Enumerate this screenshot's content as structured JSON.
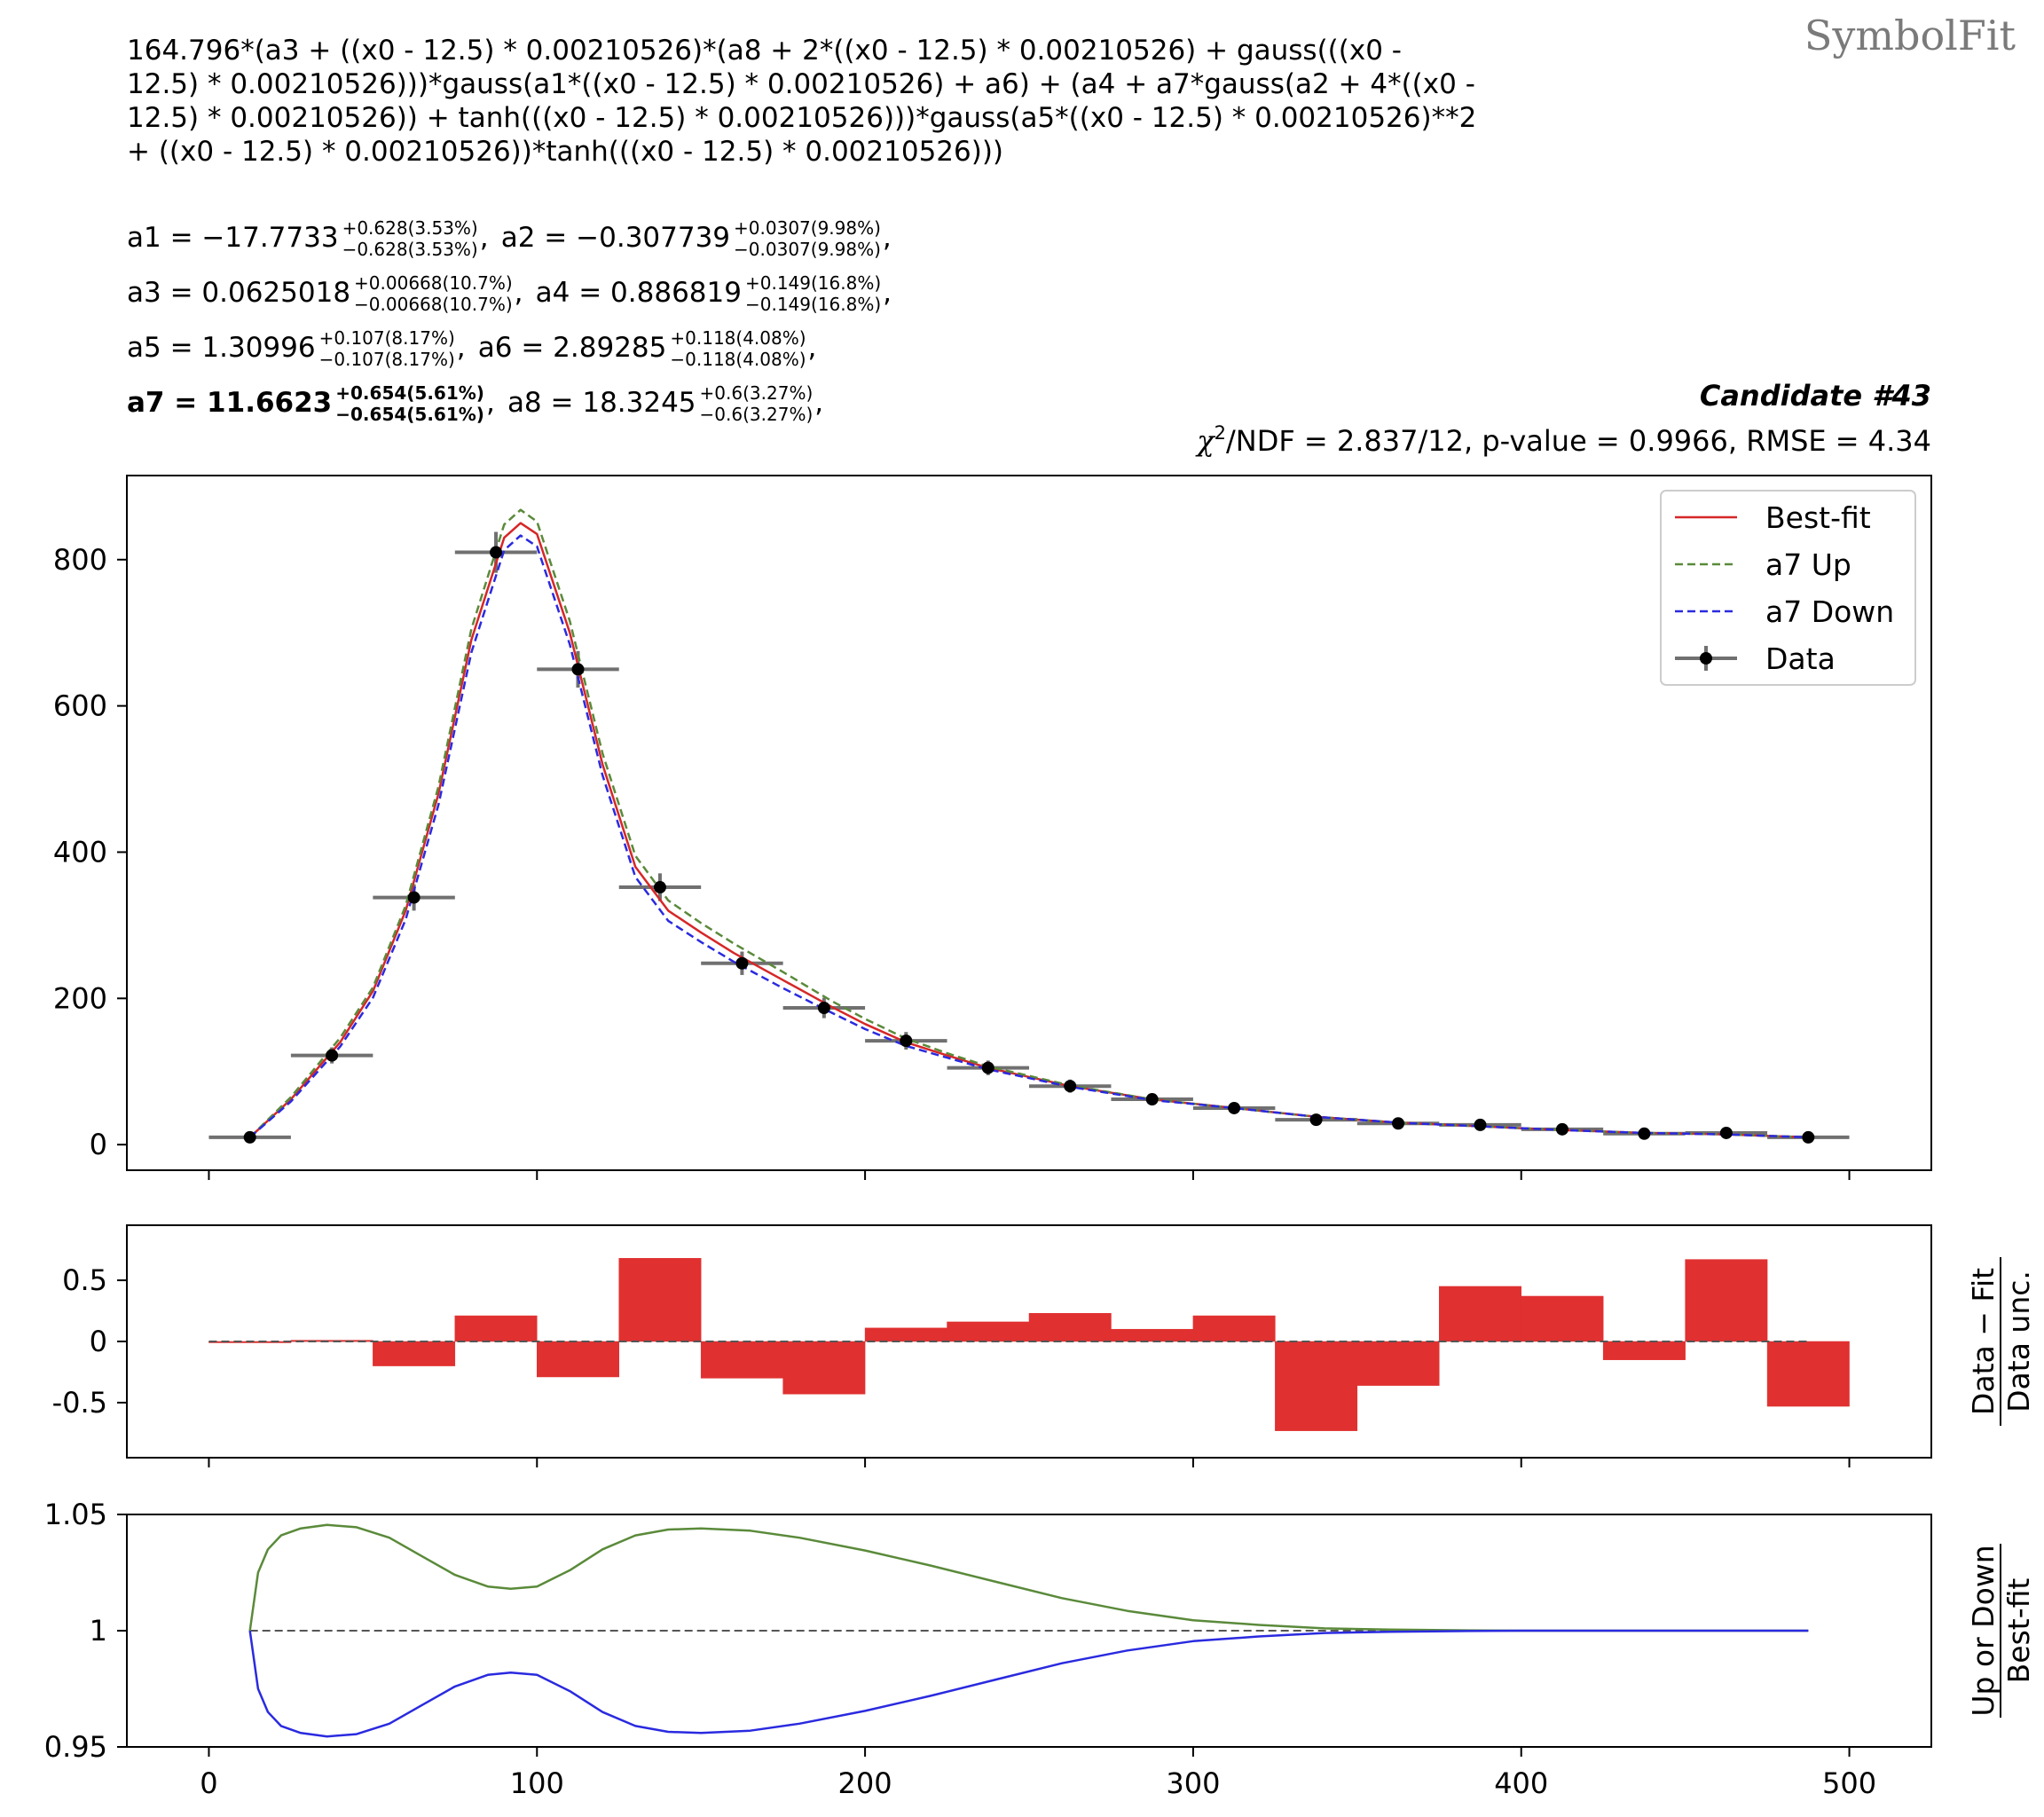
{
  "watermark": "SymbolFit",
  "formula_lines": [
    "164.796*(a3 + ((x0 - 12.5) * 0.00210526)*(a8 + 2*((x0 - 12.5) * 0.00210526) + gauss(((x0 -",
    "12.5) * 0.00210526)))*gauss(a1*((x0 - 12.5) * 0.00210526) + a6) + (a4 + a7*gauss(a2 + 4*((x0 -",
    "12.5) * 0.00210526)) + tanh(((x0 - 12.5) * 0.00210526)))*gauss(a5*((x0 - 12.5) * 0.00210526)**2",
    "+ ((x0 - 12.5) * 0.00210526))*tanh(((x0 - 12.5) * 0.00210526)))"
  ],
  "params": [
    {
      "name": "a1",
      "value": "−17.7733",
      "up": "+0.628(3.53%)",
      "down": "−0.628(3.53%)",
      "bold": false
    },
    {
      "name": "a2",
      "value": "−0.307739",
      "up": "+0.0307(9.98%)",
      "down": "−0.0307(9.98%)",
      "bold": false
    },
    {
      "name": "a3",
      "value": "0.0625018",
      "up": "+0.00668(10.7%)",
      "down": "−0.00668(10.7%)",
      "bold": false
    },
    {
      "name": "a4",
      "value": "0.886819",
      "up": "+0.149(16.8%)",
      "down": "−0.149(16.8%)",
      "bold": false
    },
    {
      "name": "a5",
      "value": "1.30996",
      "up": "+0.107(8.17%)",
      "down": "−0.107(8.17%)",
      "bold": false
    },
    {
      "name": "a6",
      "value": "2.89285",
      "up": "+0.118(4.08%)",
      "down": "−0.118(4.08%)",
      "bold": false
    },
    {
      "name": "a7",
      "value": "11.6623",
      "up": "+0.654(5.61%)",
      "down": "−0.654(5.61%)",
      "bold": true
    },
    {
      "name": "a8",
      "value": "18.3245",
      "up": "+0.6(3.27%)",
      "down": "−0.6(3.27%)",
      "bold": false
    }
  ],
  "candidate_label": "Candidate #43",
  "stats_chi": "χ",
  "stats_sup": "2",
  "stats_label": "/NDF = 2.837/12, p-value = 0.9966, RMSE = 4.34",
  "colors": {
    "best_fit": "#d62728",
    "up": "#5a8a3a",
    "down": "#2a2ae0",
    "data": "#000000",
    "bar": "#e03030",
    "errbar": "#707070"
  },
  "chart_data": [
    {
      "type": "line",
      "panel": "main",
      "xlim": [
        -25,
        525
      ],
      "ylim": [
        -35,
        915
      ],
      "yticks": [
        0,
        200,
        400,
        600,
        800
      ],
      "ytick_labels": [
        "0",
        "200",
        "400",
        "600",
        "800"
      ],
      "xticks": [
        0,
        100,
        200,
        300,
        400,
        500
      ],
      "legend_position": "top-right",
      "legend": [
        "Best-fit",
        "a7 Up",
        "a7 Down",
        "Data"
      ],
      "data": {
        "name": "Data",
        "x": [
          12.5,
          37.5,
          62.5,
          87.5,
          112.5,
          137.5,
          162.5,
          187.5,
          212.5,
          237.5,
          262.5,
          287.5,
          312.5,
          337.5,
          362.5,
          387.5,
          412.5,
          437.5,
          462.5,
          487.5
        ],
        "xerr": 12.5,
        "y": [
          10,
          122,
          338,
          810,
          650,
          352,
          248,
          187,
          142,
          105,
          80,
          62,
          50,
          34,
          29,
          27,
          21,
          15,
          16,
          10
        ],
        "yerr": [
          3,
          11,
          18,
          28,
          25,
          19,
          16,
          14,
          12,
          10,
          9,
          8,
          7,
          6,
          5,
          5,
          5,
          4,
          4,
          3
        ]
      },
      "series": [
        {
          "name": "Best-fit",
          "x": [
            12.5,
            25,
            40,
            50,
            60,
            70,
            80,
            90,
            95,
            100,
            110,
            120,
            130,
            140,
            150,
            160,
            175,
            190,
            200,
            212.5,
            225,
            237.5,
            262.5,
            287.5,
            312.5,
            337.5,
            362.5,
            387.5,
            412.5,
            437.5,
            462.5,
            487.5
          ],
          "y": [
            10,
            62,
            140,
            210,
            320,
            480,
            690,
            830,
            850,
            835,
            700,
            520,
            380,
            320,
            290,
            262,
            225,
            188,
            165,
            140,
            122,
            105,
            80,
            62,
            50,
            38,
            30,
            25,
            20,
            16,
            14,
            10
          ]
        },
        {
          "name": "a7 Up",
          "x": [
            12.5,
            25,
            40,
            50,
            60,
            70,
            80,
            90,
            95,
            100,
            110,
            120,
            130,
            140,
            150,
            160,
            175,
            190,
            200,
            212.5,
            225,
            237.5,
            262.5,
            287.5,
            312.5,
            337.5,
            362.5,
            387.5,
            412.5,
            437.5,
            462.5,
            487.5
          ],
          "y": [
            10,
            65,
            146,
            215,
            327,
            490,
            705,
            848,
            868,
            852,
            716,
            535,
            395,
            334,
            303,
            275,
            236,
            196,
            172,
            145,
            125,
            107,
            81,
            62,
            50,
            38,
            30,
            25,
            20,
            16,
            14,
            10
          ]
        },
        {
          "name": "a7 Down",
          "x": [
            12.5,
            25,
            40,
            50,
            60,
            70,
            80,
            90,
            95,
            100,
            110,
            120,
            130,
            140,
            150,
            160,
            175,
            190,
            200,
            212.5,
            225,
            237.5,
            262.5,
            287.5,
            312.5,
            337.5,
            362.5,
            387.5,
            412.5,
            437.5,
            462.5,
            487.5
          ],
          "y": [
            10,
            59,
            134,
            201,
            308,
            465,
            673,
            813,
            833,
            818,
            684,
            505,
            366,
            306,
            277,
            250,
            214,
            180,
            158,
            135,
            119,
            103,
            79,
            61,
            50,
            38,
            30,
            25,
            20,
            16,
            14,
            10
          ]
        }
      ]
    },
    {
      "type": "bar",
      "panel": "residual",
      "xlim": [
        -25,
        525
      ],
      "ylim": [
        -0.95,
        0.95
      ],
      "yticks": [
        0.5,
        0,
        -0.5
      ],
      "ytick_labels": [
        "0.5",
        "0",
        "-0.5"
      ],
      "ylabel_num": "Data − Fit",
      "ylabel_den": "Data unc.",
      "bin_edges": [
        0,
        25,
        50,
        75,
        100,
        125,
        150,
        175,
        200,
        225,
        250,
        275,
        300,
        325,
        350,
        375,
        400,
        425,
        450,
        475,
        500
      ],
      "values": [
        -0.01,
        0.01,
        -0.2,
        0.21,
        -0.29,
        0.68,
        -0.3,
        -0.43,
        0.11,
        0.16,
        0.23,
        0.1,
        0.21,
        -0.73,
        -0.36,
        0.45,
        0.37,
        -0.15,
        0.67,
        -0.53
      ]
    },
    {
      "type": "line",
      "panel": "ratio",
      "xlim": [
        -25,
        525
      ],
      "ylim": [
        0.95,
        1.05
      ],
      "yticks": [
        1.05,
        1,
        0.95
      ],
      "ytick_labels": [
        "1.05",
        "1",
        "0.95"
      ],
      "xtick_labels": [
        "0",
        "100",
        "200",
        "300",
        "400",
        "500"
      ],
      "ylabel_num": "Up or Down",
      "ylabel_den": "Best-fit",
      "series": [
        {
          "name": "a7 Up",
          "x": [
            12.5,
            15,
            18,
            22,
            28,
            36,
            45,
            55,
            65,
            75,
            85,
            92,
            100,
            110,
            120,
            130,
            140,
            150,
            165,
            180,
            200,
            220,
            240,
            260,
            280,
            300,
            320,
            340,
            360,
            380,
            400,
            450,
            487.5
          ],
          "y": [
            1.0,
            1.025,
            1.035,
            1.041,
            1.044,
            1.0455,
            1.0445,
            1.04,
            1.032,
            1.024,
            1.019,
            1.018,
            1.019,
            1.026,
            1.035,
            1.041,
            1.0435,
            1.044,
            1.043,
            1.04,
            1.0345,
            1.028,
            1.021,
            1.014,
            1.0085,
            1.0045,
            1.0025,
            1.001,
            1.0005,
            1.0002,
            1.0,
            1.0,
            1.0
          ]
        },
        {
          "name": "a7 Down",
          "x": [
            12.5,
            15,
            18,
            22,
            28,
            36,
            45,
            55,
            65,
            75,
            85,
            92,
            100,
            110,
            120,
            130,
            140,
            150,
            165,
            180,
            200,
            220,
            240,
            260,
            280,
            300,
            320,
            340,
            360,
            380,
            400,
            450,
            487.5
          ],
          "y": [
            1.0,
            0.975,
            0.965,
            0.959,
            0.956,
            0.9545,
            0.9555,
            0.96,
            0.968,
            0.976,
            0.981,
            0.982,
            0.981,
            0.974,
            0.965,
            0.959,
            0.9565,
            0.956,
            0.957,
            0.96,
            0.9655,
            0.972,
            0.979,
            0.986,
            0.9915,
            0.9955,
            0.9975,
            0.999,
            0.9995,
            0.9998,
            1.0,
            1.0,
            1.0
          ]
        }
      ]
    }
  ]
}
